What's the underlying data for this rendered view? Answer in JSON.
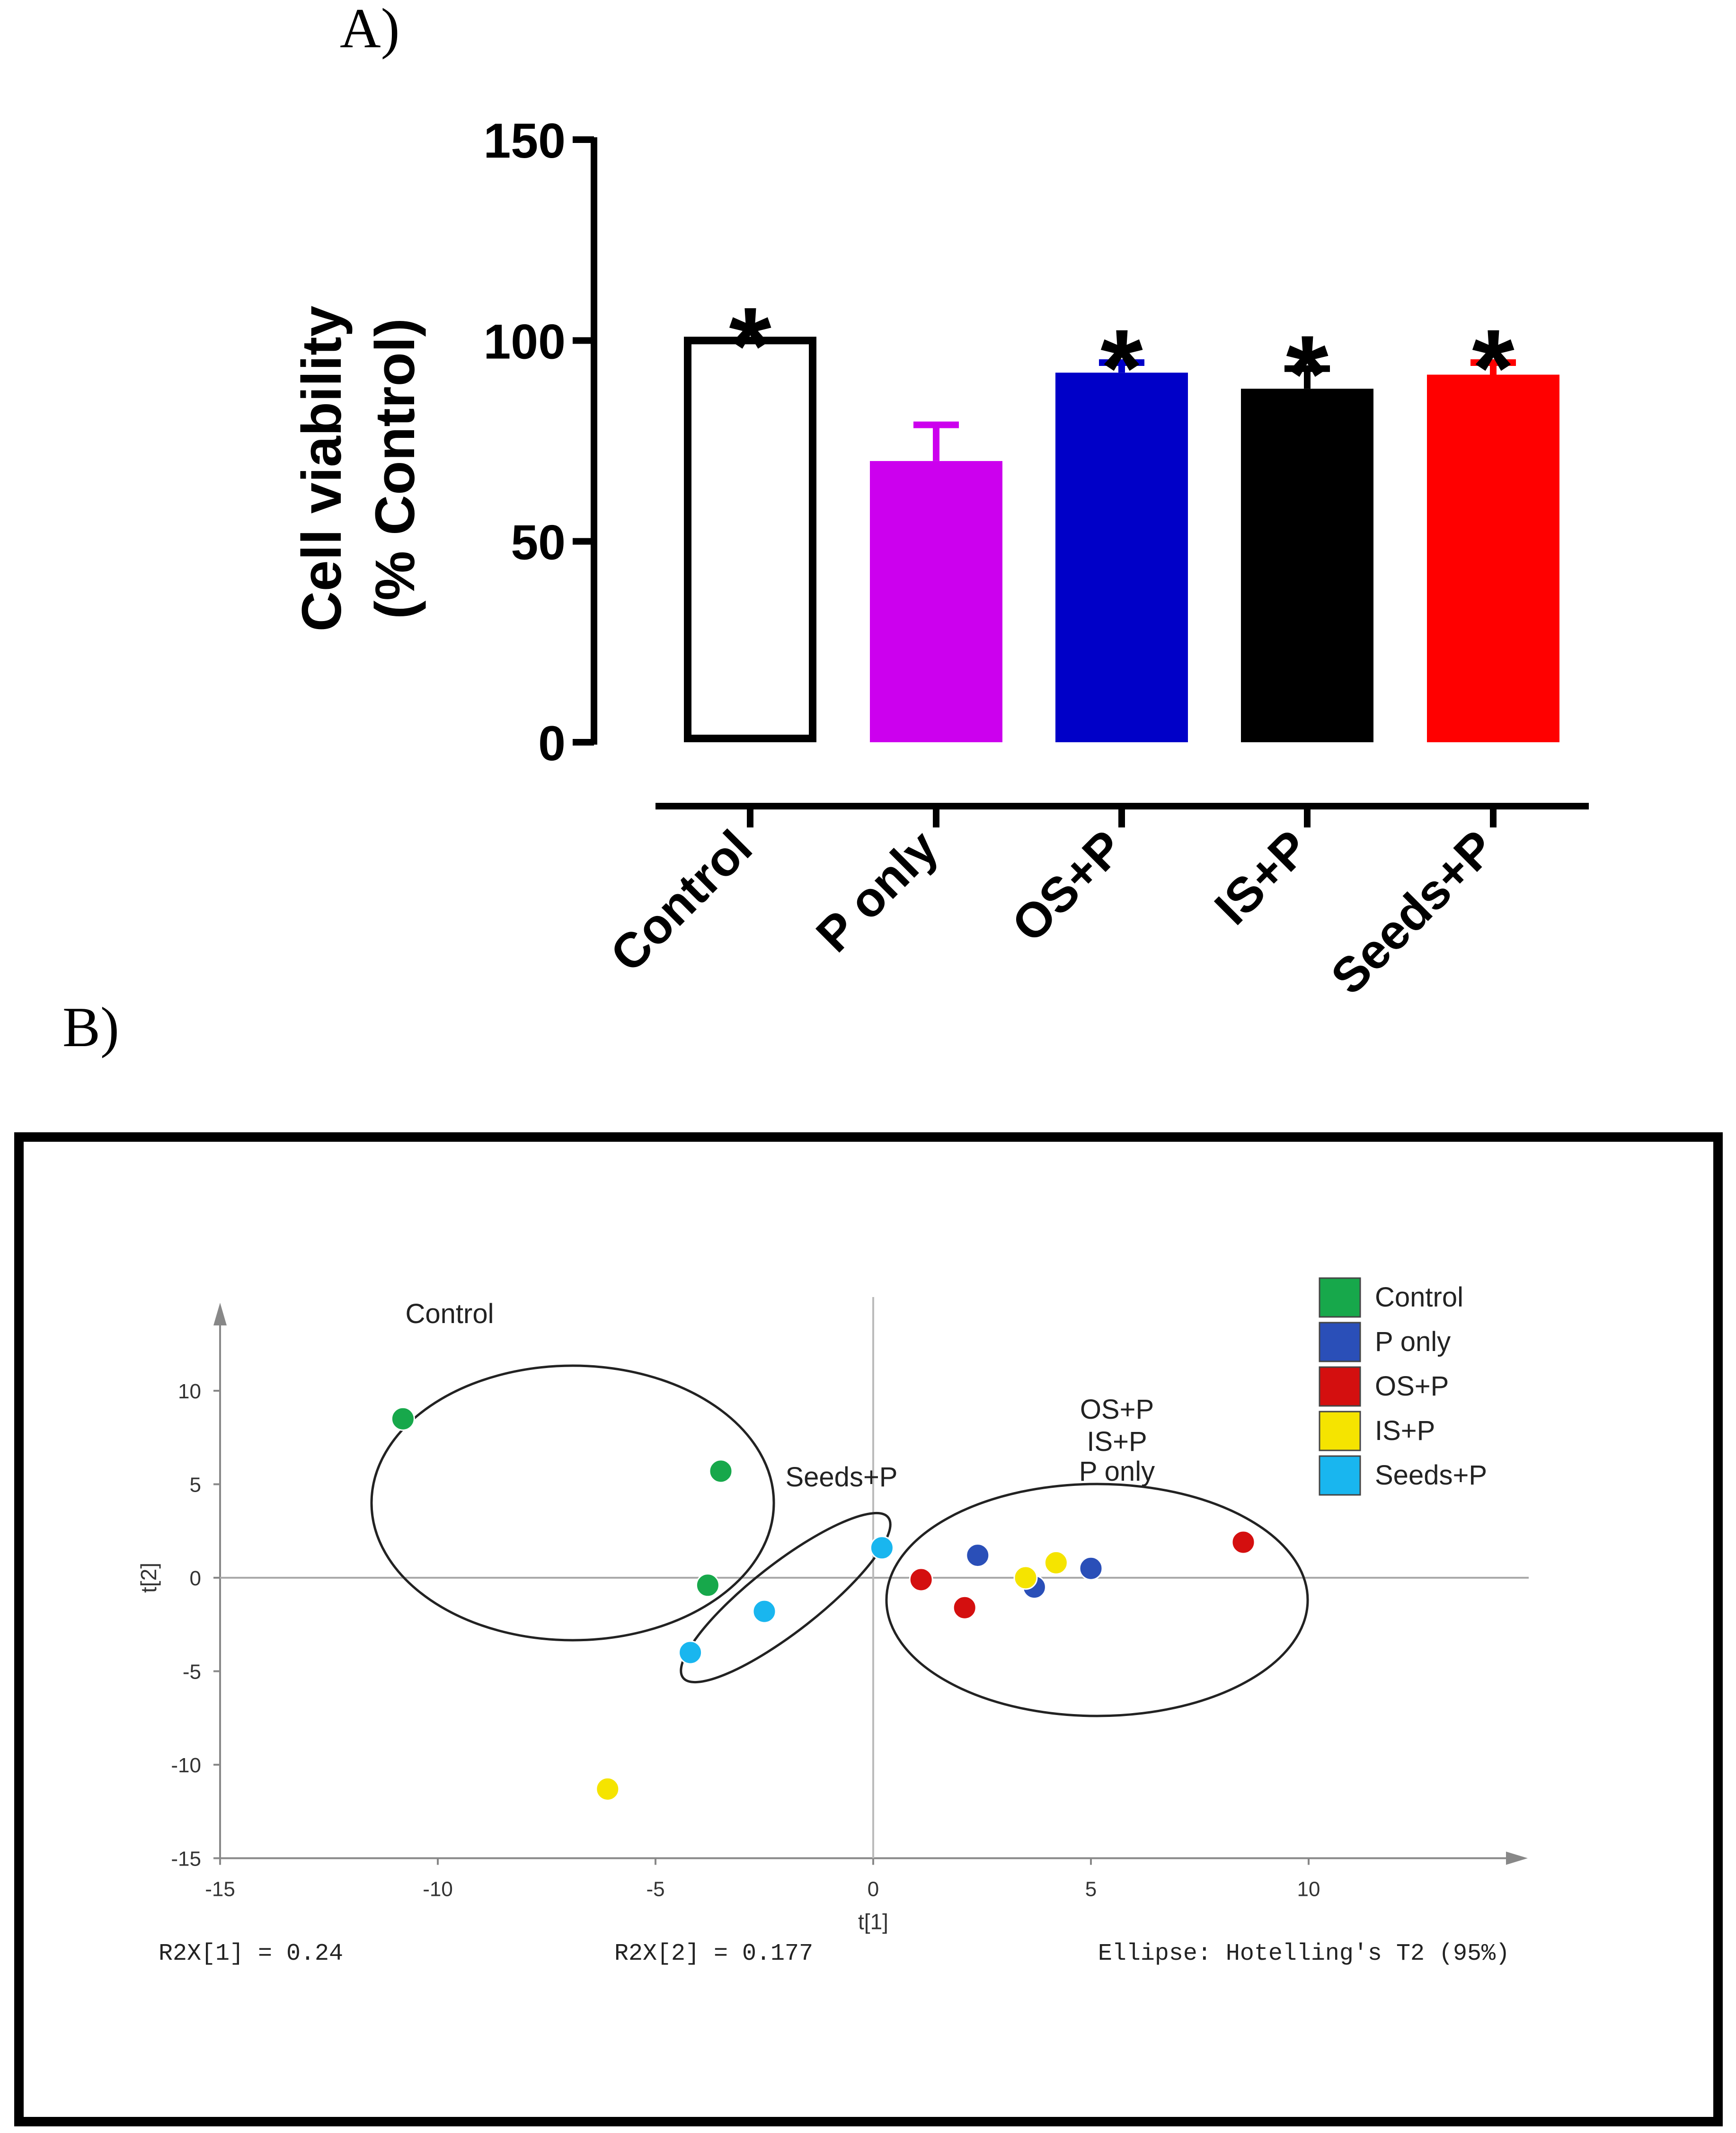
{
  "panel_labels": {
    "a": "A)",
    "b": "B)"
  },
  "chart_data": [
    {
      "type": "bar",
      "ylabel_line1": "Cell viability",
      "ylabel_line2": "(% Control)",
      "ylim": [
        0,
        150
      ],
      "yticks": [
        0,
        50,
        100,
        150
      ],
      "categories": [
        "Control",
        "P only",
        "OS+P",
        "IS+P",
        "Seeds+P"
      ],
      "values": [
        100,
        70,
        92,
        88,
        91.5
      ],
      "errors": [
        0,
        9,
        2.5,
        5,
        3
      ],
      "significant": [
        true,
        false,
        true,
        true,
        true
      ],
      "significance_marker": "*",
      "colors": [
        "#ffffff",
        "#cc00ee",
        "#0000c8",
        "#000000",
        "#ff0000"
      ]
    },
    {
      "type": "scatter",
      "xlabel": "t[1]",
      "ylabel": "t[2]",
      "xlim": [
        -15,
        15
      ],
      "ylim": [
        -15,
        14
      ],
      "xticks": [
        -15,
        -10,
        -5,
        0,
        5,
        10
      ],
      "yticks": [
        -15,
        -10,
        -5,
        0,
        5,
        10
      ],
      "legend": [
        {
          "label": "Control",
          "color": "#17a84b"
        },
        {
          "label": "P only",
          "color": "#2a4fb8"
        },
        {
          "label": "OS+P",
          "color": "#d40f0f"
        },
        {
          "label": "IS+P",
          "color": "#f5e400"
        },
        {
          "label": "Seeds+P",
          "color": "#19b6ef"
        }
      ],
      "series": [
        {
          "name": "Control",
          "points": [
            [
              -10.8,
              8.5
            ],
            [
              -3.5,
              5.7
            ],
            [
              -3.8,
              -0.4
            ]
          ]
        },
        {
          "name": "P only",
          "points": [
            [
              2.4,
              1.2
            ],
            [
              3.7,
              -0.5
            ],
            [
              5.0,
              0.5
            ]
          ]
        },
        {
          "name": "OS+P",
          "points": [
            [
              1.1,
              -0.1
            ],
            [
              2.1,
              -1.6
            ],
            [
              8.5,
              1.9
            ]
          ]
        },
        {
          "name": "IS+P",
          "points": [
            [
              3.5,
              0.0
            ],
            [
              4.2,
              0.8
            ],
            [
              -6.1,
              -11.3
            ]
          ]
        },
        {
          "name": "Seeds+P",
          "points": [
            [
              0.2,
              1.6
            ],
            [
              -2.5,
              -1.8
            ],
            [
              -4.2,
              -4.0
            ]
          ]
        }
      ],
      "group_labels": {
        "control": "Control",
        "seeds": "Seeds+P",
        "cluster_line1": "OS+P",
        "cluster_line2": "IS+P",
        "cluster_line3": "P only"
      },
      "footer": {
        "r2x1": "R2X[1] = 0.24",
        "r2x2": "R2X[2] = 0.177",
        "ellipse": "Ellipse: Hotelling's T2 (95%)"
      }
    }
  ]
}
